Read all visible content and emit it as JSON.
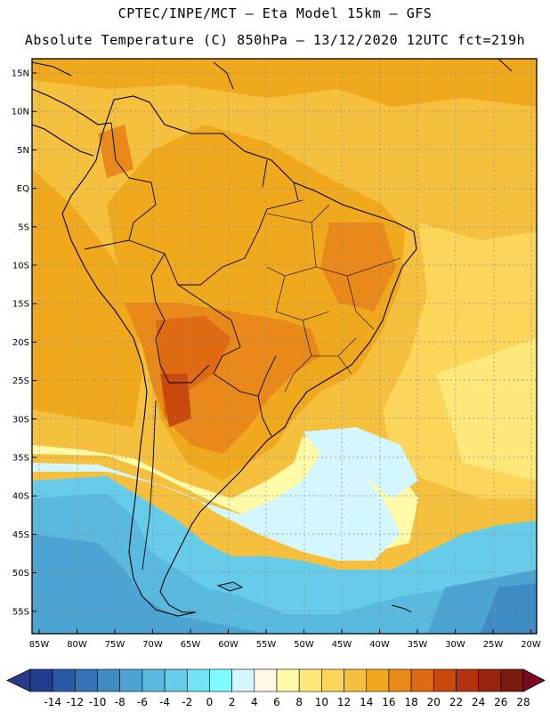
{
  "header": {
    "line1": "CPTEC/INPE/MCT –  Eta Model 15km – GFS",
    "line2": "Absolute Temperature (C) 850hPa – 13/12/2020 12UTC fct=219h"
  },
  "axes": {
    "lat_labels": [
      "15N",
      "10N",
      "5N",
      "EQ",
      "5S",
      "10S",
      "15S",
      "20S",
      "25S",
      "30S",
      "35S",
      "40S",
      "45S",
      "50S",
      "55S"
    ],
    "lat_values": [
      15,
      10,
      5,
      0,
      -5,
      -10,
      -15,
      -20,
      -25,
      -30,
      -35,
      -40,
      -45,
      -50,
      -55
    ],
    "lon_labels": [
      "85W",
      "80W",
      "75W",
      "70W",
      "65W",
      "60W",
      "55W",
      "50W",
      "45W",
      "40W",
      "35W",
      "30W",
      "25W",
      "20W"
    ],
    "lon_values": [
      -85,
      -80,
      -75,
      -70,
      -65,
      -60,
      -55,
      -50,
      -45,
      -40,
      -35,
      -30,
      -25,
      -20
    ]
  },
  "colorbar": {
    "labels": [
      "-14",
      "-12",
      "-10",
      "-8",
      "-6",
      "-4",
      "-2",
      "0",
      "2",
      "4",
      "6",
      "8",
      "10",
      "12",
      "14",
      "16",
      "18",
      "20",
      "22",
      "24",
      "26",
      "28"
    ],
    "colors": [
      "#1f3c8e",
      "#2a5aa5",
      "#3473b5",
      "#3f8cc4",
      "#4ca4d2",
      "#59b9df",
      "#66cce9",
      "#6fe4f2",
      "#7ffcff",
      "#d4f6ff",
      "#fff8e6",
      "#fffaa8",
      "#ffe87a",
      "#fbd65a",
      "#f5c03d",
      "#f0a81c",
      "#e8891a",
      "#de6a12",
      "#c9480e",
      "#b3330c",
      "#99240c",
      "#7b1a0e"
    ],
    "under_color": "#2a3a8a",
    "over_color": "#7a0a22"
  }
}
